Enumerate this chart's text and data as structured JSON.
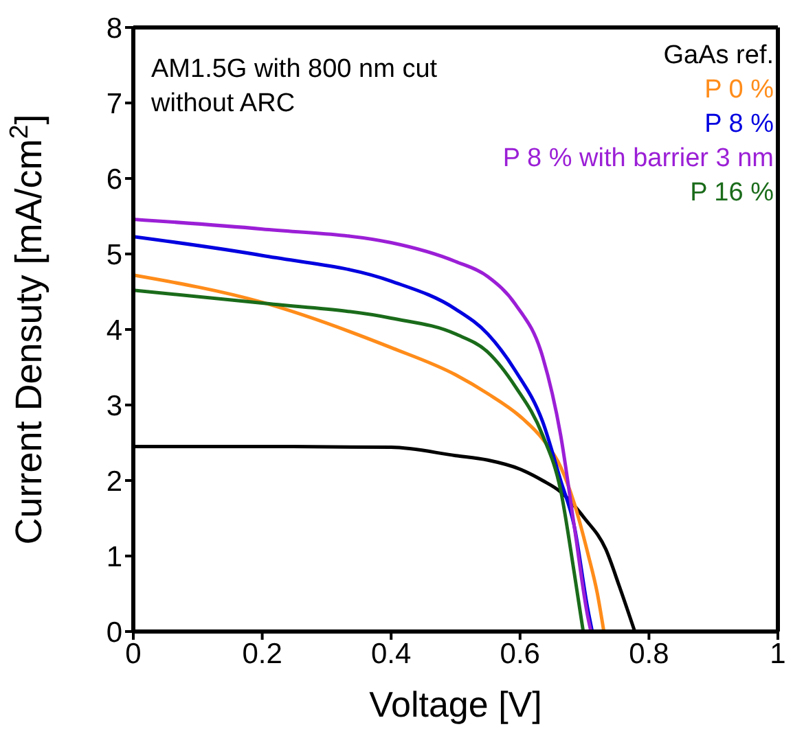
{
  "chart_data": {
    "type": "line",
    "xlabel": "Voltage [V]",
    "ylabel": "Current Densuty [mA/cm$^{2}$]",
    "xlim": [
      0,
      1
    ],
    "xticks": [
      0,
      0.2,
      0.4,
      0.6,
      0.8,
      1
    ],
    "ylim": [
      0,
      8
    ],
    "yticks": [
      0,
      1,
      2,
      3,
      4,
      5,
      6,
      7,
      8
    ],
    "grid": false,
    "legend": "top right",
    "marker": "none",
    "line_style": "solid",
    "annotations": [
      "AM1.5G with 800 nm cut",
      "without ARC"
    ],
    "series": [
      {
        "name": "GaAs ref.",
        "color": "#000000",
        "x": [
          0,
          0.2,
          0.4,
          0.5,
          0.55,
          0.6,
          0.635,
          0.663,
          0.7,
          0.733,
          0.754,
          0.778
        ],
        "values": [
          2.45,
          2.45,
          2.44,
          2.33,
          2.27,
          2.15,
          2.0,
          1.85,
          1.5,
          1.09,
          0.6,
          0
        ]
      },
      {
        "name": "P 0 %",
        "color": "#ff8c1a",
        "x": [
          0,
          0.2,
          0.4,
          0.5,
          0.55,
          0.6,
          0.635,
          0.663,
          0.684,
          0.705,
          0.72,
          0.73
        ],
        "values": [
          4.72,
          4.36,
          3.76,
          3.4,
          3.15,
          2.85,
          2.55,
          2.18,
          1.7,
          1.04,
          0.5,
          0
        ]
      },
      {
        "name": "P 8 %",
        "color": "#0000e0",
        "x": [
          0,
          0.2,
          0.4,
          0.5,
          0.55,
          0.593,
          0.635,
          0.663,
          0.684,
          0.705,
          0.712
        ],
        "values": [
          5.23,
          4.98,
          4.64,
          4.27,
          3.94,
          3.45,
          2.78,
          2.0,
          1.4,
          0.3,
          0
        ]
      },
      {
        "name": "P 8 % with barrier 3 nm",
        "color": "#9b1fd6",
        "x": [
          0,
          0.2,
          0.4,
          0.5,
          0.55,
          0.593,
          0.635,
          0.663,
          0.684,
          0.705,
          0.71
        ],
        "values": [
          5.46,
          5.33,
          5.15,
          4.9,
          4.7,
          4.33,
          3.64,
          2.6,
          1.4,
          0.2,
          0
        ]
      },
      {
        "name": "P 16 %",
        "color": "#1a6b1a",
        "x": [
          0,
          0.2,
          0.4,
          0.5,
          0.55,
          0.593,
          0.635,
          0.663,
          0.684,
          0.698
        ],
        "values": [
          4.52,
          4.35,
          4.15,
          3.94,
          3.7,
          3.24,
          2.6,
          1.87,
          0.78,
          0
        ]
      }
    ]
  }
}
